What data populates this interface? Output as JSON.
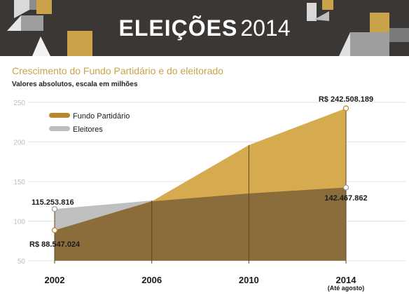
{
  "header": {
    "title_bold": "ELEIÇÕES",
    "title_year": "2014"
  },
  "colors": {
    "banner_bg": "#3a3735",
    "gold": "#c9a24a",
    "fund_area": "#d6aa4f",
    "fund_line": "#b8862b",
    "voter_area": "#bfbfbf",
    "overlap_area": "#8a6d3b",
    "legend_gray": "#bdbdbd"
  },
  "chart_data": {
    "type": "area",
    "title": "Crescimento do Fundo Partidário e do eleitorado",
    "subtitle": "Valores absolutos, escala em milhões",
    "categories": [
      "2002",
      "2006",
      "2010",
      "2014"
    ],
    "category_sublabels": [
      "",
      "",
      "",
      "(Até agosto)"
    ],
    "ylim": [
      50,
      250
    ],
    "yticks": [
      "50",
      "100",
      "150",
      "200",
      "250"
    ],
    "series": [
      {
        "name": "Fundo Partidário",
        "values": [
          88.5,
          125,
          196,
          242.5
        ]
      },
      {
        "name": "Eleitores",
        "values": [
          115.3,
          126,
          135,
          142.5
        ]
      }
    ],
    "annotations": [
      {
        "text": "R$ 242.508.189",
        "series": 0,
        "index": 3
      },
      {
        "text": "142.467.862",
        "series": 1,
        "index": 3
      },
      {
        "text": "115.253.816",
        "series": 1,
        "index": 0
      },
      {
        "text": "R$ 88.547.024",
        "series": 0,
        "index": 0
      }
    ],
    "legend_position": "top-left",
    "grid": true
  }
}
